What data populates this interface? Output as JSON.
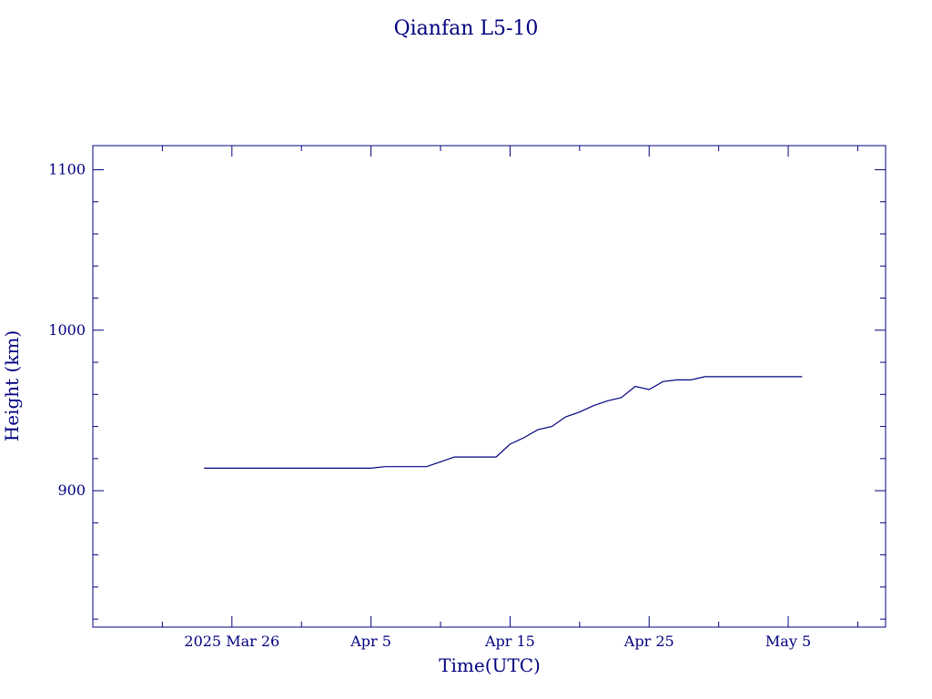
{
  "chart_data": {
    "type": "line",
    "title": "Qianfan L5-10",
    "xlabel": "Time(UTC)",
    "ylabel": "Height (km)",
    "x_range": [
      "2025-03-16",
      "2025-05-12"
    ],
    "ylim": [
      815,
      1115
    ],
    "y_ticks": [
      900,
      1000,
      1100
    ],
    "x_ticks": [
      {
        "date": "2025-03-26",
        "label": "2025 Mar 26"
      },
      {
        "date": "2025-04-05",
        "label": "Apr  5"
      },
      {
        "date": "2025-04-15",
        "label": "Apr 15"
      },
      {
        "date": "2025-04-25",
        "label": "Apr 25"
      },
      {
        "date": "2025-05-05",
        "label": "May  5"
      }
    ],
    "grid": false,
    "line_color": "#000080",
    "series": [
      {
        "points": [
          [
            "2025-03-24",
            914
          ],
          [
            "2025-04-05",
            914
          ],
          [
            "2025-04-06",
            915
          ],
          [
            "2025-04-09",
            915
          ],
          [
            "2025-04-10",
            918
          ],
          [
            "2025-04-11",
            921
          ],
          [
            "2025-04-14",
            921
          ],
          [
            "2025-04-15",
            929
          ],
          [
            "2025-04-16",
            933
          ],
          [
            "2025-04-17",
            938
          ],
          [
            "2025-04-18",
            940
          ],
          [
            "2025-04-19",
            946
          ],
          [
            "2025-04-20",
            949
          ],
          [
            "2025-04-21",
            953
          ],
          [
            "2025-04-22",
            956
          ],
          [
            "2025-04-23",
            958
          ],
          [
            "2025-04-24",
            965
          ],
          [
            "2025-04-25",
            963
          ],
          [
            "2025-04-26",
            968
          ],
          [
            "2025-04-27",
            969
          ],
          [
            "2025-04-28",
            969
          ],
          [
            "2025-04-29",
            971
          ],
          [
            "2025-05-06",
            971
          ]
        ]
      }
    ]
  }
}
